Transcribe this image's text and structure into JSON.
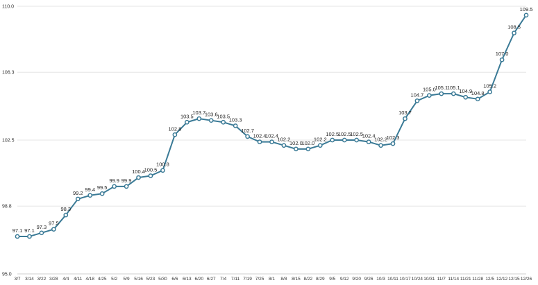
{
  "chart_data": {
    "type": "line",
    "title": "",
    "xlabel": "",
    "ylabel": "",
    "ylim": [
      95.0,
      110.0
    ],
    "yticks": [
      "95.0",
      "98.8",
      "102.5",
      "106.3",
      "110.0"
    ],
    "categories": [
      "3/7",
      "3/14",
      "3/22",
      "3/28",
      "4/4",
      "4/11",
      "4/18",
      "4/25",
      "5/2",
      "5/9",
      "5/16",
      "5/23",
      "5/30",
      "6/6",
      "6/13",
      "6/20",
      "6/27",
      "7/4",
      "7/11",
      "7/19",
      "7/25",
      "8/1",
      "8/8",
      "8/15",
      "8/22",
      "8/29",
      "9/5",
      "9/12",
      "9/20",
      "9/26",
      "10/3",
      "10/11",
      "10/17",
      "10/24",
      "10/31",
      "11/7",
      "11/14",
      "11/21",
      "11/28",
      "12/5",
      "12/12",
      "12/15",
      "12/26"
    ],
    "series": [
      {
        "values": [
          97.1,
          97.1,
          97.3,
          97.5,
          98.3,
          99.2,
          99.4,
          99.5,
          99.9,
          99.9,
          100.4,
          100.5,
          100.8,
          102.8,
          103.5,
          103.7,
          103.6,
          103.5,
          103.3,
          102.7,
          102.4,
          102.4,
          102.2,
          102.0,
          102.0,
          102.2,
          102.5,
          102.5,
          102.5,
          102.4,
          102.2,
          102.3,
          103.7,
          104.7,
          105.0,
          105.1,
          105.1,
          104.9,
          104.8,
          105.2,
          107.0,
          108.5,
          109.5
        ],
        "labels": [
          "97.1",
          "97.1",
          "97.3",
          "97.5",
          "98.3",
          "99.2",
          "99.4",
          "99.5",
          "99.9",
          "99.9",
          "100.4",
          "100.5",
          "100.8",
          "102.8",
          "103.5",
          "103.7",
          "103.6",
          "103.5",
          "103.3",
          "102.7",
          "102.4",
          "102.4",
          "102.2",
          "102.0",
          "102.0",
          "102.2",
          "102.5",
          "102.5",
          "102.5",
          "102.4",
          "102.2",
          "102.3",
          "103.7",
          "104.7",
          "105.0",
          "105.1",
          "105.1",
          "104.9",
          "104.8",
          "105.2",
          "107.0",
          "108.5",
          "109.5"
        ]
      }
    ],
    "grid": true,
    "legend": "none",
    "colors": {
      "line": "#3a7a96",
      "grid": "#e6e6e6"
    }
  }
}
